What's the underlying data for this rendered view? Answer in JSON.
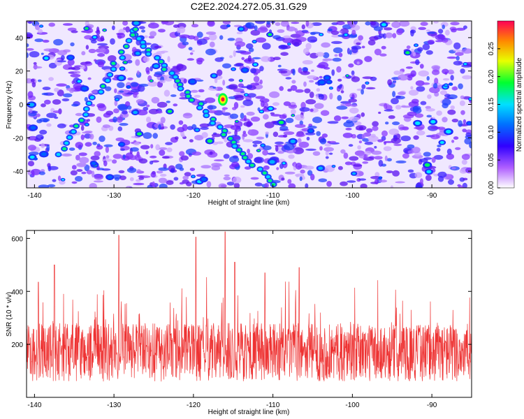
{
  "title": "C2E2.2024.272.05.31.G29",
  "chart_data": [
    {
      "type": "heatmap",
      "xlabel": "Height of straight line (km)",
      "ylabel": "Frequency (Hz)",
      "xlim": [
        -141,
        -85
      ],
      "ylim": [
        -50,
        50
      ],
      "xticks": [
        -140,
        -130,
        -120,
        -110,
        -100,
        -90
      ],
      "yticks": [
        -40,
        -20,
        0,
        20,
        40
      ],
      "colorbar": {
        "label": "Normalized spectral amplitude",
        "range": [
          0,
          0.3
        ],
        "ticks": [
          "0.00",
          "0.05",
          "0.10",
          "0.15",
          "0.20",
          "0.25"
        ],
        "colors": [
          "#ffffff",
          "#7a00ff",
          "#0000ff",
          "#00c0ff",
          "#00ff40",
          "#ffff00",
          "#ff8000",
          "#ff0044"
        ]
      },
      "features": [
        {
          "name": "line",
          "x": [
            -128,
            -110
          ],
          "y": [
            44,
            -48
          ],
          "peak": [
            -116.3,
            3
          ]
        },
        {
          "name": "line",
          "x": [
            -137,
            -127
          ],
          "y": [
            -30,
            45
          ]
        }
      ]
    },
    {
      "type": "line",
      "xlabel": "Height of straight line (km)",
      "ylabel": "SNR (10 * v/v)",
      "xlim": [
        -141,
        -85
      ],
      "ylim": [
        0,
        630
      ],
      "xticks": [
        -140,
        -130,
        -120,
        -110,
        -100,
        -90
      ],
      "yticks": [
        200,
        400,
        600
      ],
      "series_color": "#ee3333",
      "baseline_mean": 170,
      "peaks": [
        {
          "x": -116.0,
          "y": 625
        },
        {
          "x": -129.4,
          "y": 612
        },
        {
          "x": -119.7,
          "y": 605
        },
        {
          "x": -137.5,
          "y": 500
        },
        {
          "x": -114.8,
          "y": 510
        },
        {
          "x": -111.0,
          "y": 470
        },
        {
          "x": -106.7,
          "y": 490
        },
        {
          "x": -139.5,
          "y": 435
        }
      ]
    }
  ]
}
